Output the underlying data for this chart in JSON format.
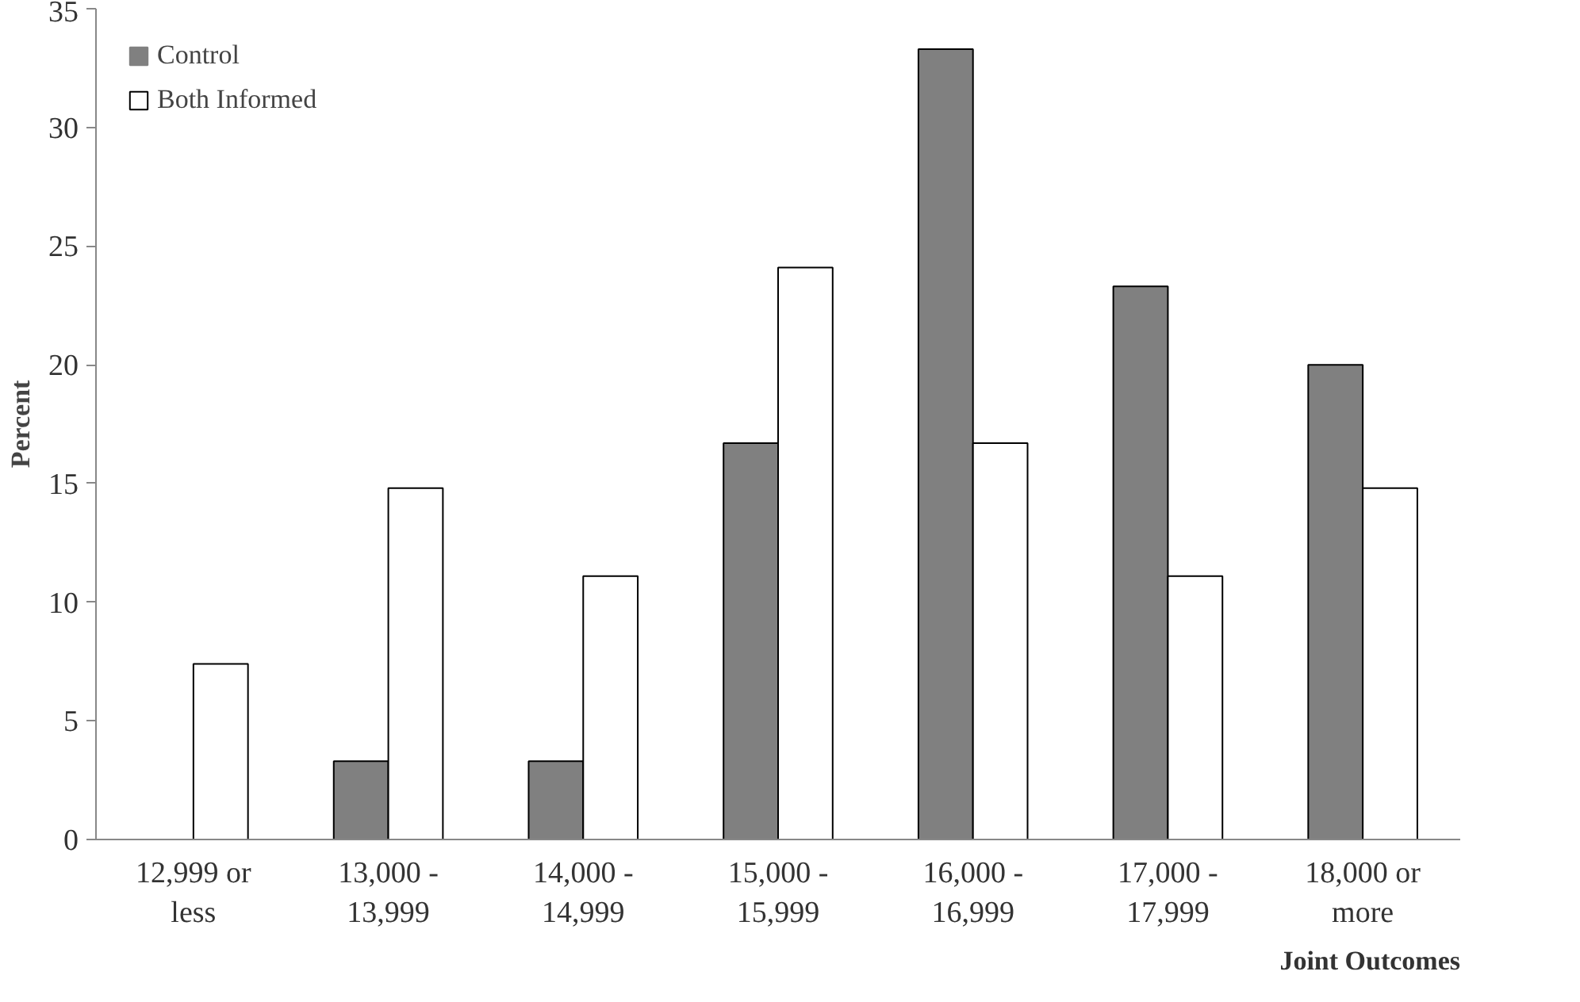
{
  "chart_data": {
    "type": "bar",
    "xlabel": "Joint Outcomes",
    "ylabel": "Percent",
    "categories": [
      "12,999 or\nless",
      "13,000 -\n13,999",
      "14,000 -\n14,999",
      "15,000 -\n15,999",
      "16,000 -\n16,999",
      "17,000 -\n17,999",
      "18,000 or\nmore"
    ],
    "series": [
      {
        "name": "Control",
        "color": "#808080",
        "values": [
          0,
          3.3,
          3.3,
          16.7,
          33.3,
          23.3,
          20.0
        ]
      },
      {
        "name": "Both Informed",
        "color": "#ffffff",
        "values": [
          7.4,
          14.8,
          11.1,
          24.1,
          16.7,
          11.1,
          14.8
        ]
      }
    ],
    "ylim": [
      0,
      35
    ],
    "yticks": [
      0,
      5,
      10,
      15,
      20,
      25,
      30,
      35
    ],
    "grid": false,
    "legend": "top left"
  }
}
